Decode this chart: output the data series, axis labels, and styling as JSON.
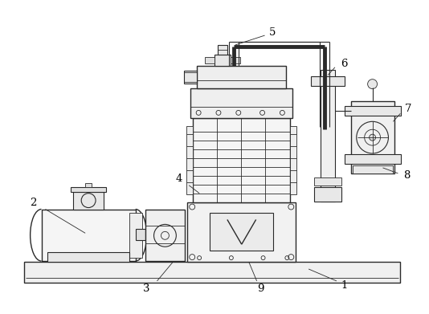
{
  "background_color": "#ffffff",
  "line_color": "#2a2a2a",
  "label_color": "#000000",
  "lw_main": 1.0,
  "lw_thin": 0.6,
  "lw_med": 0.8,
  "fig_w": 5.34,
  "fig_h": 3.91,
  "dpi": 100
}
